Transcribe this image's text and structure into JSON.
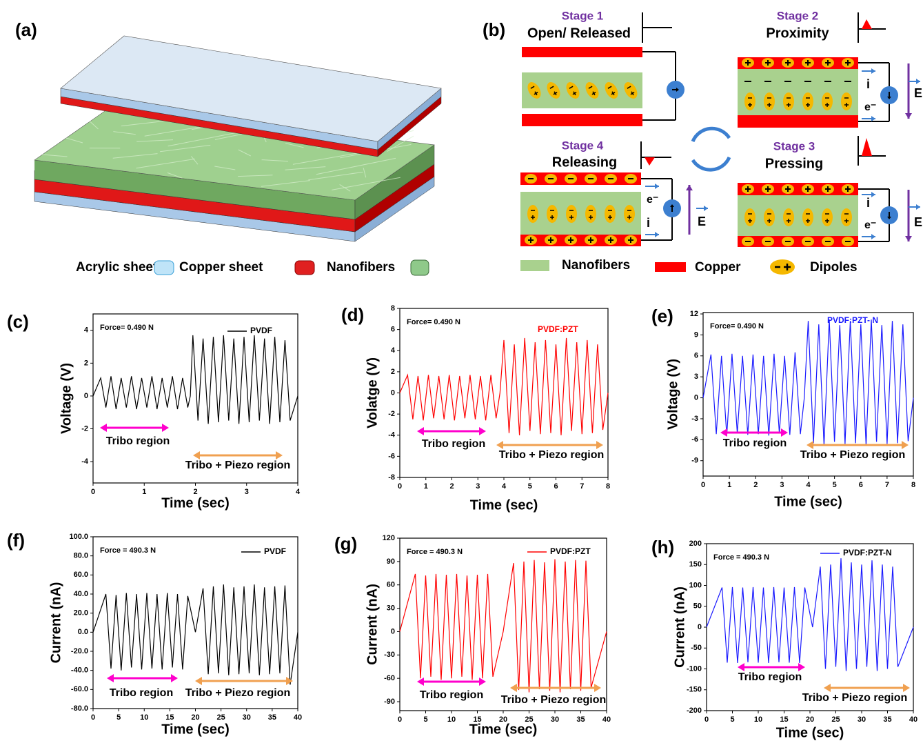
{
  "panel_a": {
    "label": "(a)",
    "legend": [
      "Acrylic sheet",
      "Copper sheet",
      "Nanofibers"
    ]
  },
  "panel_b": {
    "label": "(b)",
    "stages": [
      {
        "stage": "Stage 1",
        "name": "Open/ Released"
      },
      {
        "stage": "Stage 2",
        "name": "Proximity"
      },
      {
        "stage": "Stage 4",
        "name": "Releasing"
      },
      {
        "stage": "Stage 3",
        "name": "Pressing"
      }
    ],
    "current_label": "i",
    "electron_label": "e⁻",
    "field_label": "E",
    "legend": [
      "Nanofibers",
      "Copper",
      "Dipoles"
    ]
  },
  "chart_data": [
    {
      "type": "line",
      "label": "(c)",
      "annotation": "Force= 0.490 N",
      "xlabel": "Time (sec)",
      "ylabel": "Voltage (V)",
      "x": [
        0,
        0.15,
        0.25,
        0.35,
        0.45,
        0.55,
        0.65,
        0.75,
        0.85,
        0.95,
        1.05,
        1.15,
        1.25,
        1.35,
        1.45,
        1.55,
        1.65,
        1.75,
        1.85,
        1.9,
        1.95,
        2.05,
        2.15,
        2.25,
        2.35,
        2.45,
        2.55,
        2.65,
        2.75,
        2.85,
        2.95,
        3.05,
        3.15,
        3.25,
        3.35,
        3.45,
        3.55,
        3.65,
        3.75,
        3.85,
        4
      ],
      "series": [
        {
          "name": "PVDF",
          "color": "#000000",
          "values": [
            0,
            1.1,
            -0.7,
            1.2,
            -0.8,
            1.1,
            -0.7,
            1.2,
            -0.8,
            1.1,
            -0.7,
            1.2,
            -0.8,
            1.1,
            -0.7,
            1.2,
            -0.8,
            1.1,
            -0.7,
            0,
            3.7,
            -1.5,
            3.5,
            -1.7,
            3.6,
            -1.6,
            3.7,
            -1.5,
            3.5,
            -1.7,
            3.6,
            -1.6,
            3.7,
            -1.5,
            3.5,
            -1.7,
            3.6,
            -1.6,
            3.4,
            -1.5,
            0
          ]
        }
      ],
      "xlim": [
        0,
        4
      ],
      "xticks": [
        0,
        1,
        2,
        3,
        4
      ],
      "ylim": [
        -5.3,
        5
      ],
      "yticks": [
        -4,
        -2,
        0,
        2,
        4
      ],
      "regions": [
        {
          "text": "Tribo region",
          "color": "#ff00cc"
        },
        {
          "text": "Tribo + Piezo region",
          "color": "#f0a050"
        }
      ]
    },
    {
      "type": "line",
      "label": "(d)",
      "annotation": "Force= 0.490 N",
      "xlabel": "Time (sec)",
      "ylabel": "Volatge (V)",
      "x": [
        0,
        0.3,
        0.5,
        0.7,
        0.9,
        1.1,
        1.3,
        1.5,
        1.7,
        1.9,
        2.1,
        2.3,
        2.5,
        2.7,
        2.9,
        3.1,
        3.3,
        3.5,
        3.7,
        3.85,
        4.0,
        4.2,
        4.4,
        4.6,
        4.8,
        5.0,
        5.2,
        5.4,
        5.6,
        5.8,
        6.0,
        6.2,
        6.4,
        6.6,
        6.8,
        7.0,
        7.2,
        7.4,
        7.6,
        7.8,
        8
      ],
      "series": [
        {
          "name": "PVDF:PZT",
          "color": "#ff0000",
          "values": [
            0,
            1.7,
            -2.5,
            1.6,
            -2.6,
            1.7,
            -2.4,
            1.6,
            -2.5,
            1.7,
            -2.6,
            1.6,
            -2.4,
            1.7,
            -2.5,
            1.6,
            -2.6,
            1.7,
            -2.4,
            0,
            5.0,
            -3.8,
            4.6,
            -4.0,
            5.2,
            -3.6,
            4.8,
            -3.9,
            5.0,
            -3.8,
            4.6,
            -4.0,
            5.2,
            -3.6,
            4.8,
            -3.9,
            5.0,
            -3.8,
            4.6,
            -3.5,
            0
          ]
        }
      ],
      "xlim": [
        0,
        8
      ],
      "xticks": [
        0,
        1,
        2,
        3,
        4,
        5,
        6,
        7,
        8
      ],
      "ylim": [
        -8,
        8
      ],
      "yticks": [
        -8,
        -6,
        -4,
        -2,
        0,
        2,
        4,
        6,
        8
      ],
      "regions": [
        {
          "text": "Tribo region",
          "color": "#ff00cc"
        },
        {
          "text": "Tribo + Piezo region",
          "color": "#f0a050"
        }
      ]
    },
    {
      "type": "line",
      "label": "(e)",
      "annotation": "Force= 0.490 N",
      "xlabel": "Time (sec)",
      "ylabel": "Voltage (V)",
      "x": [
        0,
        0.3,
        0.5,
        0.7,
        0.9,
        1.1,
        1.3,
        1.5,
        1.7,
        1.9,
        2.1,
        2.3,
        2.5,
        2.7,
        2.9,
        3.1,
        3.3,
        3.5,
        3.7,
        3.85,
        4.0,
        4.2,
        4.4,
        4.6,
        4.8,
        5.0,
        5.2,
        5.4,
        5.6,
        5.8,
        6.0,
        6.2,
        6.4,
        6.6,
        6.8,
        7.0,
        7.2,
        7.4,
        7.6,
        7.8,
        8
      ],
      "series": [
        {
          "name": "PVDF:PZT- N",
          "color": "#1a1aff",
          "values": [
            0,
            6.2,
            -5.2,
            6.0,
            -5.4,
            6.3,
            -5.1,
            6.0,
            -5.3,
            6.2,
            -5.2,
            6.0,
            -5.4,
            6.3,
            -5.1,
            6.0,
            -5.3,
            6.5,
            -5.2,
            0,
            11,
            -6.5,
            10.5,
            -6.8,
            11.2,
            -6.3,
            10.4,
            -6.6,
            11,
            -6.5,
            10.5,
            -6.8,
            11.2,
            -6.3,
            10.4,
            -6.6,
            11,
            -6.5,
            10.5,
            -6.2,
            0
          ]
        }
      ],
      "xlim": [
        0,
        8
      ],
      "xticks": [
        0,
        1,
        2,
        3,
        4,
        5,
        6,
        7,
        8
      ],
      "ylim": [
        -11.2,
        12.2
      ],
      "yticks": [
        -9,
        -6,
        -3,
        0,
        3,
        6,
        9,
        12
      ],
      "regions": [
        {
          "text": "Tribo region",
          "color": "#ff00cc"
        },
        {
          "text": "Tribo + Piezo region",
          "color": "#f0a050"
        }
      ]
    },
    {
      "type": "line",
      "label": "(f)",
      "annotation": "Force = 490.3 N",
      "xlabel": "Time (sec)",
      "ylabel": "Current (nA)",
      "x": [
        0,
        2.5,
        3.5,
        4.5,
        5.5,
        6.5,
        7.5,
        8.5,
        9.5,
        10.5,
        11.5,
        12.5,
        13.5,
        14.5,
        15.5,
        16.5,
        17.5,
        18.5,
        20,
        21.5,
        22.5,
        23.5,
        24.5,
        25.5,
        26.5,
        27.5,
        28.5,
        29.5,
        30.5,
        31.5,
        32.5,
        33.5,
        34.5,
        35.5,
        36.5,
        37.5,
        38.5,
        40
      ],
      "series": [
        {
          "name": "PVDF",
          "color": "#000000",
          "values": [
            0,
            40,
            -38,
            39,
            -40,
            41,
            -37,
            40,
            -39,
            41,
            -38,
            40,
            -39,
            41,
            -37,
            40,
            -39,
            38,
            0,
            46,
            -44,
            48,
            -43,
            50,
            -45,
            47,
            -44,
            48,
            -43,
            50,
            -45,
            47,
            -44,
            48,
            -43,
            49,
            -55,
            0
          ]
        }
      ],
      "xlim": [
        0,
        40
      ],
      "xticks": [
        0,
        5,
        10,
        15,
        20,
        25,
        30,
        35,
        40
      ],
      "ylim": [
        -80,
        100
      ],
      "yticks": [
        {
          "value": -80,
          "label": "-80.0"
        },
        {
          "value": -60,
          "label": "-60.0"
        },
        {
          "value": -40,
          "label": "-40.0"
        },
        {
          "value": -20,
          "label": "-20.0"
        },
        {
          "value": 0,
          "label": "0.0"
        },
        {
          "value": 20,
          "label": "20.0"
        },
        {
          "value": 40,
          "label": "40.0"
        },
        {
          "value": 60,
          "label": "60.0"
        },
        {
          "value": 80,
          "label": "80.0"
        },
        {
          "value": 100,
          "label": "100.0"
        }
      ],
      "regions": [
        {
          "text": "Tribo region",
          "color": "#ff00cc"
        },
        {
          "text": "Tribo + Piezo region",
          "color": "#f0a050"
        }
      ]
    },
    {
      "type": "line",
      "label": "(g)",
      "annotation": "Force = 490.3 N",
      "xlabel": "Time (sec)",
      "ylabel": "Current (nA)",
      "x": [
        0,
        3,
        4,
        5,
        6,
        7,
        8,
        9,
        10,
        11,
        12,
        13,
        14,
        15,
        16,
        17,
        18,
        20,
        22,
        23,
        24,
        25,
        26,
        27,
        28,
        29,
        30,
        31,
        32,
        33,
        34,
        35,
        36,
        37,
        40
      ],
      "series": [
        {
          "name": "PVDF:PZT",
          "color": "#ff0000",
          "values": [
            0,
            74,
            -60,
            72,
            -58,
            74,
            -62,
            73,
            -60,
            74,
            -58,
            72,
            -62,
            73,
            -60,
            74,
            -58,
            0,
            88,
            -75,
            90,
            -78,
            92,
            -74,
            89,
            -76,
            93,
            -78,
            90,
            -74,
            92,
            -76,
            91,
            -72,
            0
          ]
        }
      ],
      "xlim": [
        0,
        40
      ],
      "xticks": [
        0,
        5,
        10,
        15,
        20,
        25,
        30,
        35,
        40
      ],
      "ylim": [
        -101.5,
        120
      ],
      "yticks": [
        -90,
        -60,
        -30,
        0,
        30,
        60,
        90,
        120
      ],
      "regions": [
        {
          "text": "Tribo region",
          "color": "#ff00cc"
        },
        {
          "text": "Tribo + Piezo region",
          "color": "#f0a050"
        }
      ]
    },
    {
      "type": "line",
      "label": "(h)",
      "annotation": "Force = 490.3 N",
      "xlabel": "Time (sec)",
      "ylabel": "Current (nA)",
      "x": [
        0,
        3,
        4,
        5,
        6,
        7,
        8,
        9,
        10,
        11,
        12,
        13,
        14,
        15,
        16,
        17,
        18,
        19,
        20.5,
        22,
        23,
        24,
        25,
        26,
        27,
        28,
        29,
        30,
        31,
        32,
        33,
        34,
        35,
        36,
        37,
        40
      ],
      "series": [
        {
          "name": "PVDF:PZT-N",
          "color": "#1a1aff",
          "values": [
            0,
            95,
            -85,
            96,
            -86,
            95,
            -84,
            96,
            -85,
            95,
            -86,
            96,
            -84,
            95,
            -85,
            96,
            -86,
            95,
            0,
            145,
            -100,
            150,
            -95,
            165,
            -105,
            155,
            -100,
            150,
            -95,
            160,
            -105,
            150,
            -100,
            145,
            -95,
            0
          ]
        }
      ],
      "xlim": [
        0,
        40
      ],
      "xticks": [
        0,
        5,
        10,
        15,
        20,
        25,
        30,
        35,
        40
      ],
      "ylim": [
        -200,
        200
      ],
      "yticks": [
        -200,
        -150,
        -100,
        -50,
        0,
        50,
        100,
        150,
        200
      ],
      "regions": [
        {
          "text": "Tribo region",
          "color": "#ff00cc"
        },
        {
          "text": "Tribo + Piezo region",
          "color": "#f0a050"
        }
      ]
    }
  ]
}
